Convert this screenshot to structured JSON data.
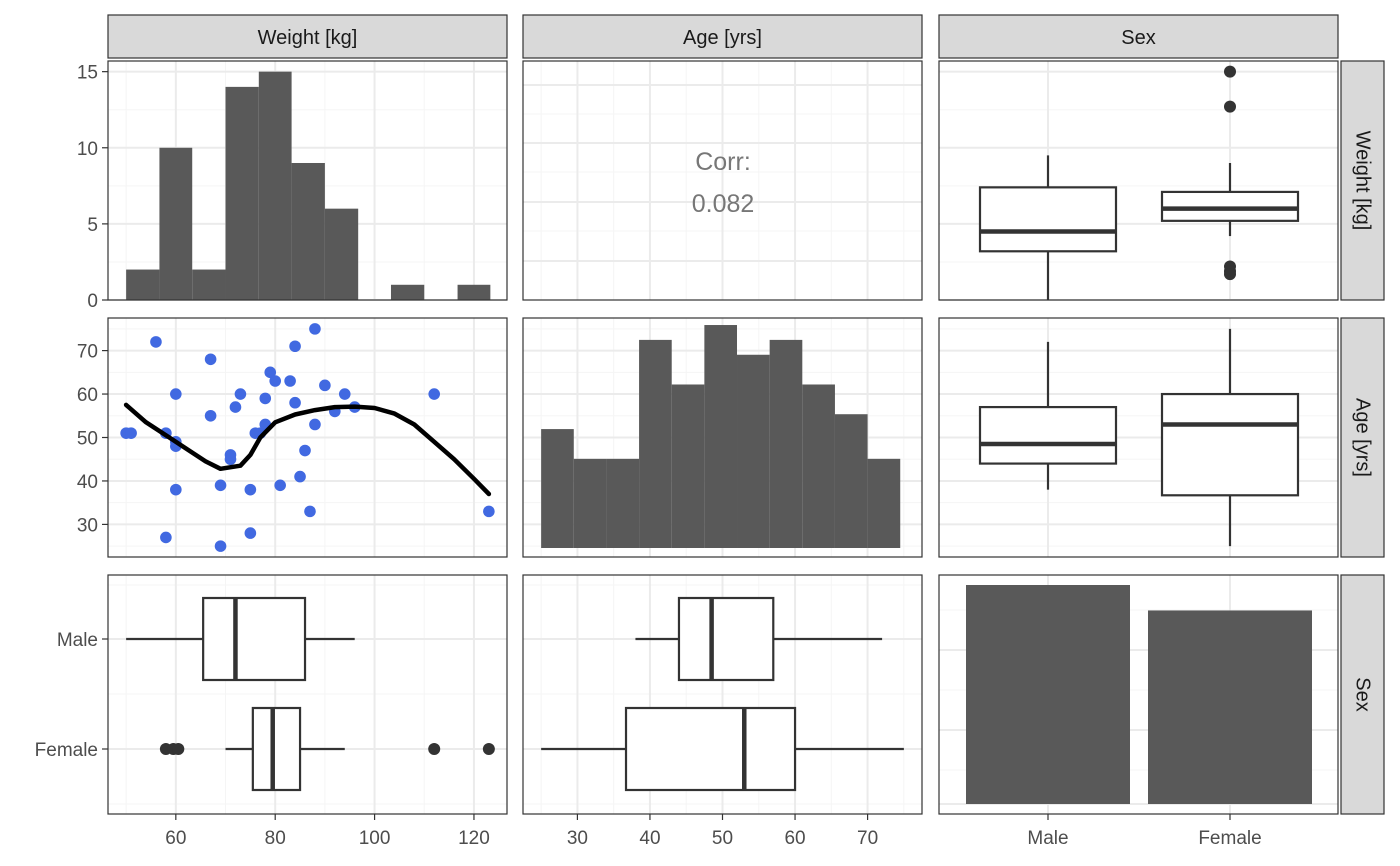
{
  "chart_data": {
    "type": "scatterplot-matrix",
    "variables": [
      "Weight [kg]",
      "Age [yrs]",
      "Sex"
    ],
    "grid": true,
    "panels": {
      "weight_hist": {
        "type": "bar",
        "bins": [
          [
            50,
            56.7,
            2
          ],
          [
            56.7,
            63.3,
            10
          ],
          [
            63.3,
            70,
            2
          ],
          [
            70,
            76.7,
            14
          ],
          [
            76.7,
            83.3,
            15
          ],
          [
            83.3,
            90,
            9
          ],
          [
            90,
            96.7,
            6
          ],
          [
            103.3,
            110,
            1
          ],
          [
            116.7,
            123.3,
            1
          ]
        ],
        "ylim": [
          0,
          15.7
        ],
        "yticks": [
          0,
          5,
          10,
          15
        ]
      },
      "age_hist": {
        "type": "bar",
        "bins": [
          [
            25,
            29.5,
            4
          ],
          [
            29.5,
            34,
            3
          ],
          [
            34,
            38.5,
            3
          ],
          [
            38.5,
            43,
            7
          ],
          [
            43,
            47.5,
            5.5
          ],
          [
            47.5,
            52,
            7.5
          ],
          [
            52,
            56.5,
            6.5
          ],
          [
            56.5,
            61,
            7
          ],
          [
            61,
            65.5,
            5.5
          ],
          [
            65.5,
            70,
            4.5
          ],
          [
            70,
            74.5,
            3
          ]
        ],
        "ylim": [
          0,
          8
        ]
      },
      "corr": {
        "label": "Corr:",
        "value": "0.082"
      },
      "scatter": {
        "type": "scatter",
        "color": "#4169E1",
        "points": [
          [
            50,
            51
          ],
          [
            51,
            51
          ],
          [
            56,
            72
          ],
          [
            58,
            51
          ],
          [
            58,
            27
          ],
          [
            60,
            38
          ],
          [
            60,
            60
          ],
          [
            60,
            48
          ],
          [
            60,
            49
          ],
          [
            67,
            68
          ],
          [
            67,
            55
          ],
          [
            69,
            39
          ],
          [
            69,
            25
          ],
          [
            71,
            45
          ],
          [
            71,
            46
          ],
          [
            72,
            57
          ],
          [
            73,
            60
          ],
          [
            75,
            38
          ],
          [
            75,
            28
          ],
          [
            76,
            51
          ],
          [
            77,
            51
          ],
          [
            78,
            53
          ],
          [
            78,
            59
          ],
          [
            79,
            65
          ],
          [
            80,
            63
          ],
          [
            81,
            39
          ],
          [
            83,
            63
          ],
          [
            84,
            71
          ],
          [
            84,
            58
          ],
          [
            85,
            41
          ],
          [
            86,
            47
          ],
          [
            87,
            33
          ],
          [
            88,
            75
          ],
          [
            88,
            53
          ],
          [
            90,
            62
          ],
          [
            92,
            56
          ],
          [
            94,
            60
          ],
          [
            96,
            57
          ],
          [
            112,
            60
          ],
          [
            123,
            33
          ]
        ],
        "smooth": [
          [
            50,
            57.5
          ],
          [
            54,
            53.5
          ],
          [
            58,
            50.5
          ],
          [
            62,
            47.5
          ],
          [
            66,
            44.5
          ],
          [
            69,
            42.8
          ],
          [
            73,
            43.5
          ],
          [
            75,
            46
          ],
          [
            77,
            50
          ],
          [
            80,
            53.5
          ],
          [
            84,
            55.3
          ],
          [
            88,
            56.3
          ],
          [
            92,
            57
          ],
          [
            96,
            57.1
          ],
          [
            100,
            56.8
          ],
          [
            104,
            55.5
          ],
          [
            108,
            53
          ],
          [
            112,
            49
          ],
          [
            116,
            45
          ],
          [
            120,
            40.5
          ],
          [
            123,
            37
          ]
        ],
        "xlim": [
          46.35,
          126.65
        ],
        "ylim": [
          22.5,
          77.5
        ],
        "yticks": [
          30,
          40,
          50,
          60,
          70
        ],
        "xticks": [
          60,
          80,
          100,
          120
        ]
      },
      "weight_by_sex_vertical": {
        "type": "boxplot",
        "groups": [
          {
            "name": "Male",
            "whisker_lo": 0,
            "q1": 3.2,
            "median": 4.5,
            "q3": 7.4,
            "whisker_hi": 9.5,
            "outliers": []
          },
          {
            "name": "Female",
            "whisker_lo": 4.2,
            "q1": 5.2,
            "median": 6,
            "q3": 7.1,
            "whisker_hi": 9,
            "outliers": [
              15,
              12.7,
              2.2,
              1.9,
              1.7
            ]
          }
        ]
      },
      "age_by_sex_vertical": {
        "type": "boxplot",
        "ylim": [
          22.5,
          77.5
        ],
        "groups": [
          {
            "name": "Male",
            "whisker_lo": 38,
            "q1": 44,
            "median": 48.5,
            "q3": 57,
            "whisker_hi": 72,
            "outliers": []
          },
          {
            "name": "Female",
            "whisker_lo": 25,
            "q1": 36.7,
            "median": 53,
            "q3": 60,
            "whisker_hi": 75,
            "outliers": []
          }
        ]
      },
      "weight_by_sex_horizontal": {
        "type": "boxplot",
        "groups": [
          {
            "name": "Male",
            "whisker_lo": 50,
            "q1": 65.5,
            "median": 72,
            "q3": 86,
            "whisker_hi": 96,
            "outliers": []
          },
          {
            "name": "Female",
            "whisker_lo": 70,
            "q1": 75.5,
            "median": 79.5,
            "q3": 85,
            "whisker_hi": 94,
            "outliers": [
              58,
              59.5,
              60.5,
              112,
              123
            ]
          }
        ]
      },
      "age_by_sex_horizontal": {
        "type": "boxplot",
        "xlim": [
          22.5,
          77.5
        ],
        "xticks": [
          30,
          40,
          50,
          60,
          70
        ],
        "groups": [
          {
            "name": "Male",
            "whisker_lo": 38,
            "q1": 44,
            "median": 48.5,
            "q3": 57,
            "whisker_hi": 72,
            "outliers": []
          },
          {
            "name": "Female",
            "whisker_lo": 25,
            "q1": 36.7,
            "median": 53,
            "q3": 60,
            "whisker_hi": 75,
            "outliers": []
          }
        ]
      },
      "sex_bar": {
        "type": "bar",
        "categories": [
          "Male",
          "Female"
        ],
        "values": [
          21.5,
          19
        ]
      }
    }
  }
}
